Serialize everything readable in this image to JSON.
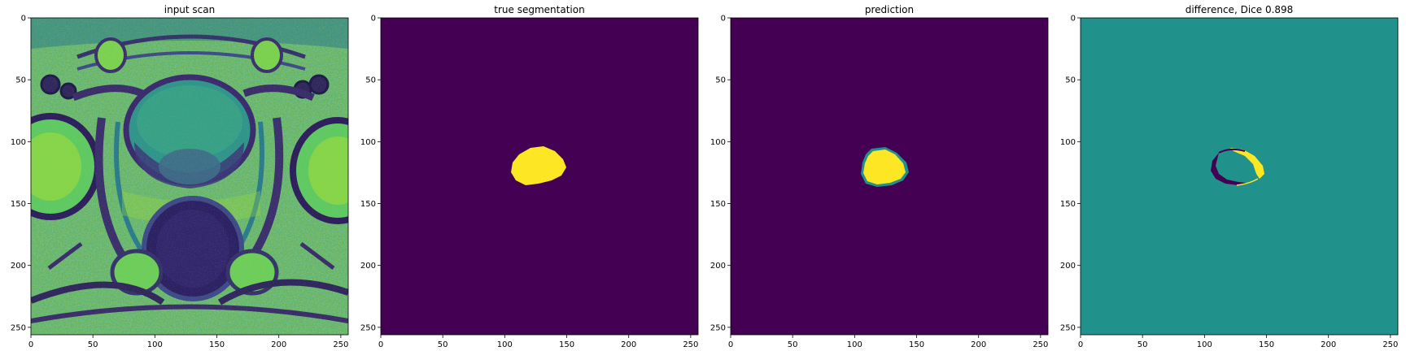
{
  "figure": {
    "panels": [
      {
        "key": "input",
        "title": "input scan",
        "colormap": "viridis",
        "image_extent": [
          0,
          256
        ],
        "xticks": [
          "0",
          "50",
          "100",
          "150",
          "200",
          "250"
        ],
        "yticks": [
          "0",
          "50",
          "100",
          "150",
          "200",
          "250"
        ]
      },
      {
        "key": "truth",
        "title": "true segmentation",
        "colormap": "viridis",
        "image_extent": [
          0,
          256
        ],
        "background_color": "#440154",
        "mask_color": "#fde725",
        "xticks": [
          "0",
          "50",
          "100",
          "150",
          "200",
          "250"
        ],
        "yticks": [
          "0",
          "50",
          "100",
          "150",
          "200",
          "250"
        ]
      },
      {
        "key": "prediction",
        "title": "prediction",
        "colormap": "viridis",
        "image_extent": [
          0,
          256
        ],
        "background_color": "#440154",
        "mask_color": "#fde725",
        "edge_color": "#21918c",
        "xticks": [
          "0",
          "50",
          "100",
          "150",
          "200",
          "250"
        ],
        "yticks": [
          "0",
          "50",
          "100",
          "150",
          "200",
          "250"
        ]
      },
      {
        "key": "difference",
        "title": "difference, Dice 0.898",
        "colormap": "viridis",
        "image_extent": [
          0,
          256
        ],
        "background_color": "#21918c",
        "positive_color": "#fde725",
        "negative_color": "#440154",
        "xticks": [
          "0",
          "50",
          "100",
          "150",
          "200",
          "250"
        ],
        "yticks": [
          "0",
          "50",
          "100",
          "150",
          "200",
          "250"
        ]
      }
    ],
    "dice_score": 0.898
  }
}
